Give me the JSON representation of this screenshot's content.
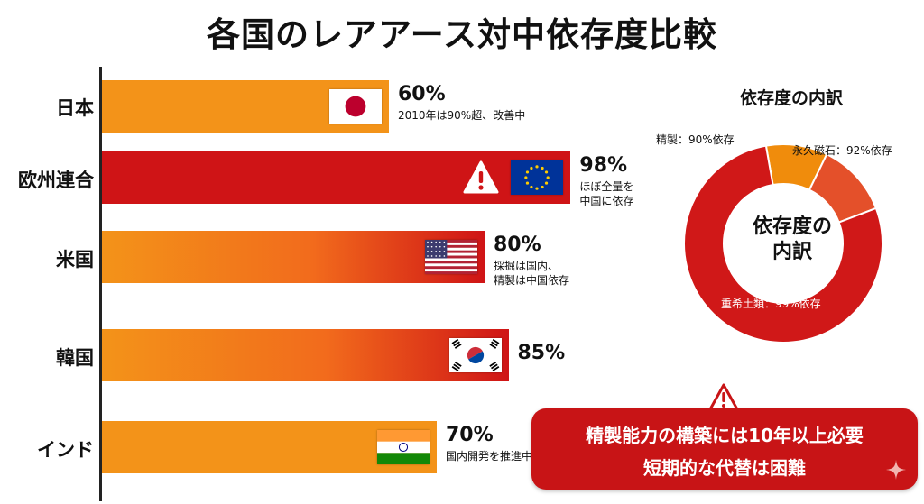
{
  "chart_data": [
    {
      "type": "bar",
      "orientation": "horizontal",
      "title": "各国のレアアース対中依存度比較",
      "categories": [
        "日本",
        "欧州連合",
        "米国",
        "韓国",
        "インド"
      ],
      "values": [
        60,
        98,
        80,
        85,
        70
      ],
      "value_labels": [
        "60%",
        "98%",
        "80%",
        "85%",
        "70%"
      ],
      "annotations": [
        "2010年は90%超、改善中",
        "ほぼ全量を\n中国に依存",
        "採掘は国内、\n精製は中国依存",
        "",
        "国内開発を推進中"
      ],
      "unit": "%",
      "xlim": [
        0,
        100
      ],
      "grid": false
    },
    {
      "type": "pie",
      "style": "donut",
      "title": "依存度の内訳",
      "center_text": "依存度の\n内訳",
      "slices": [
        {
          "label": "精製：90%依存",
          "value": 10,
          "color": "#f08c0c"
        },
        {
          "label": "永久磁石：92%依存",
          "value": 12,
          "color": "#e4502a"
        },
        {
          "label": "重希土類：99%依存",
          "value": 78,
          "color": "#d01818"
        }
      ]
    }
  ],
  "callout": {
    "line1": "精製能力の構築には10年以上必要",
    "line2": "短期的な代替は困難"
  },
  "colors": {
    "orange": "#f39319",
    "red": "#cf1416",
    "callout": "#c81416"
  },
  "icons": {
    "warning": "warning-triangle-icon",
    "sparkle": "sparkle-icon",
    "flags": [
      "japan-flag-icon",
      "eu-flag-icon",
      "us-flag-icon",
      "korea-flag-icon",
      "india-flag-icon"
    ]
  }
}
